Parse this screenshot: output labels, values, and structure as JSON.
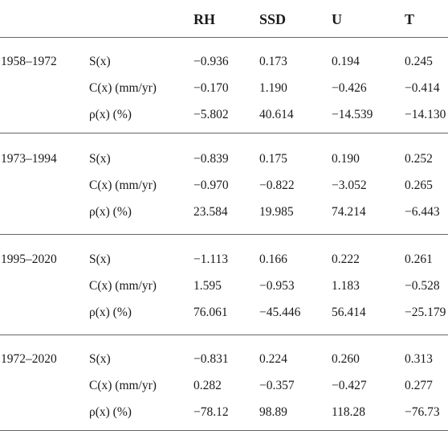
{
  "headers": {
    "col0": "",
    "col1": "",
    "rh": "RH",
    "ssd": "SSD",
    "u": "U",
    "t": "T"
  },
  "periods": [
    {
      "label": "1958–1972",
      "rows": [
        {
          "metric": "S(x)",
          "rh": "−0.936",
          "ssd": "0.173",
          "u": "0.194",
          "t": "0.245"
        },
        {
          "metric": "C(x) (mm/yr)",
          "rh": "−0.170",
          "ssd": "1.190",
          "u": "−0.426",
          "t": "−0.414"
        },
        {
          "metric": "ρ(x) (%)",
          "rh": "−5.802",
          "ssd": "40.614",
          "u": "−14.539",
          "t": "−14.130"
        }
      ]
    },
    {
      "label": "1973–1994",
      "rows": [
        {
          "metric": "S(x)",
          "rh": "−0.839",
          "ssd": "0.175",
          "u": "0.190",
          "t": "0.252"
        },
        {
          "metric": "C(x) (mm/yr)",
          "rh": "−0.970",
          "ssd": "−0.822",
          "u": "−3.052",
          "t": "0.265"
        },
        {
          "metric": "ρ(x) (%)",
          "rh": "23.584",
          "ssd": "19.985",
          "u": "74.214",
          "t": "−6.443"
        }
      ]
    },
    {
      "label": "1995–2020",
      "rows": [
        {
          "metric": "S(x)",
          "rh": "−1.113",
          "ssd": "0.166",
          "u": "0.222",
          "t": "0.261"
        },
        {
          "metric": "C(x) (mm/yr)",
          "rh": "1.595",
          "ssd": "−0.953",
          "u": "1.183",
          "t": "−0.528"
        },
        {
          "metric": "ρ(x) (%)",
          "rh": "76.061",
          "ssd": "−45.446",
          "u": "56.414",
          "t": "−25.179"
        }
      ]
    },
    {
      "label": "1972–2020",
      "rows": [
        {
          "metric": "S(x)",
          "rh": "−0.831",
          "ssd": "0.224",
          "u": "0.260",
          "t": "0.313"
        },
        {
          "metric": "C(x) (mm/yr)",
          "rh": "0.282",
          "ssd": "−0.357",
          "u": "−0.427",
          "t": "0.277"
        },
        {
          "metric": "ρ(x) (%)",
          "rh": "−78.12",
          "ssd": "98.89",
          "u": "118.28",
          "t": "−76.73"
        }
      ]
    }
  ]
}
